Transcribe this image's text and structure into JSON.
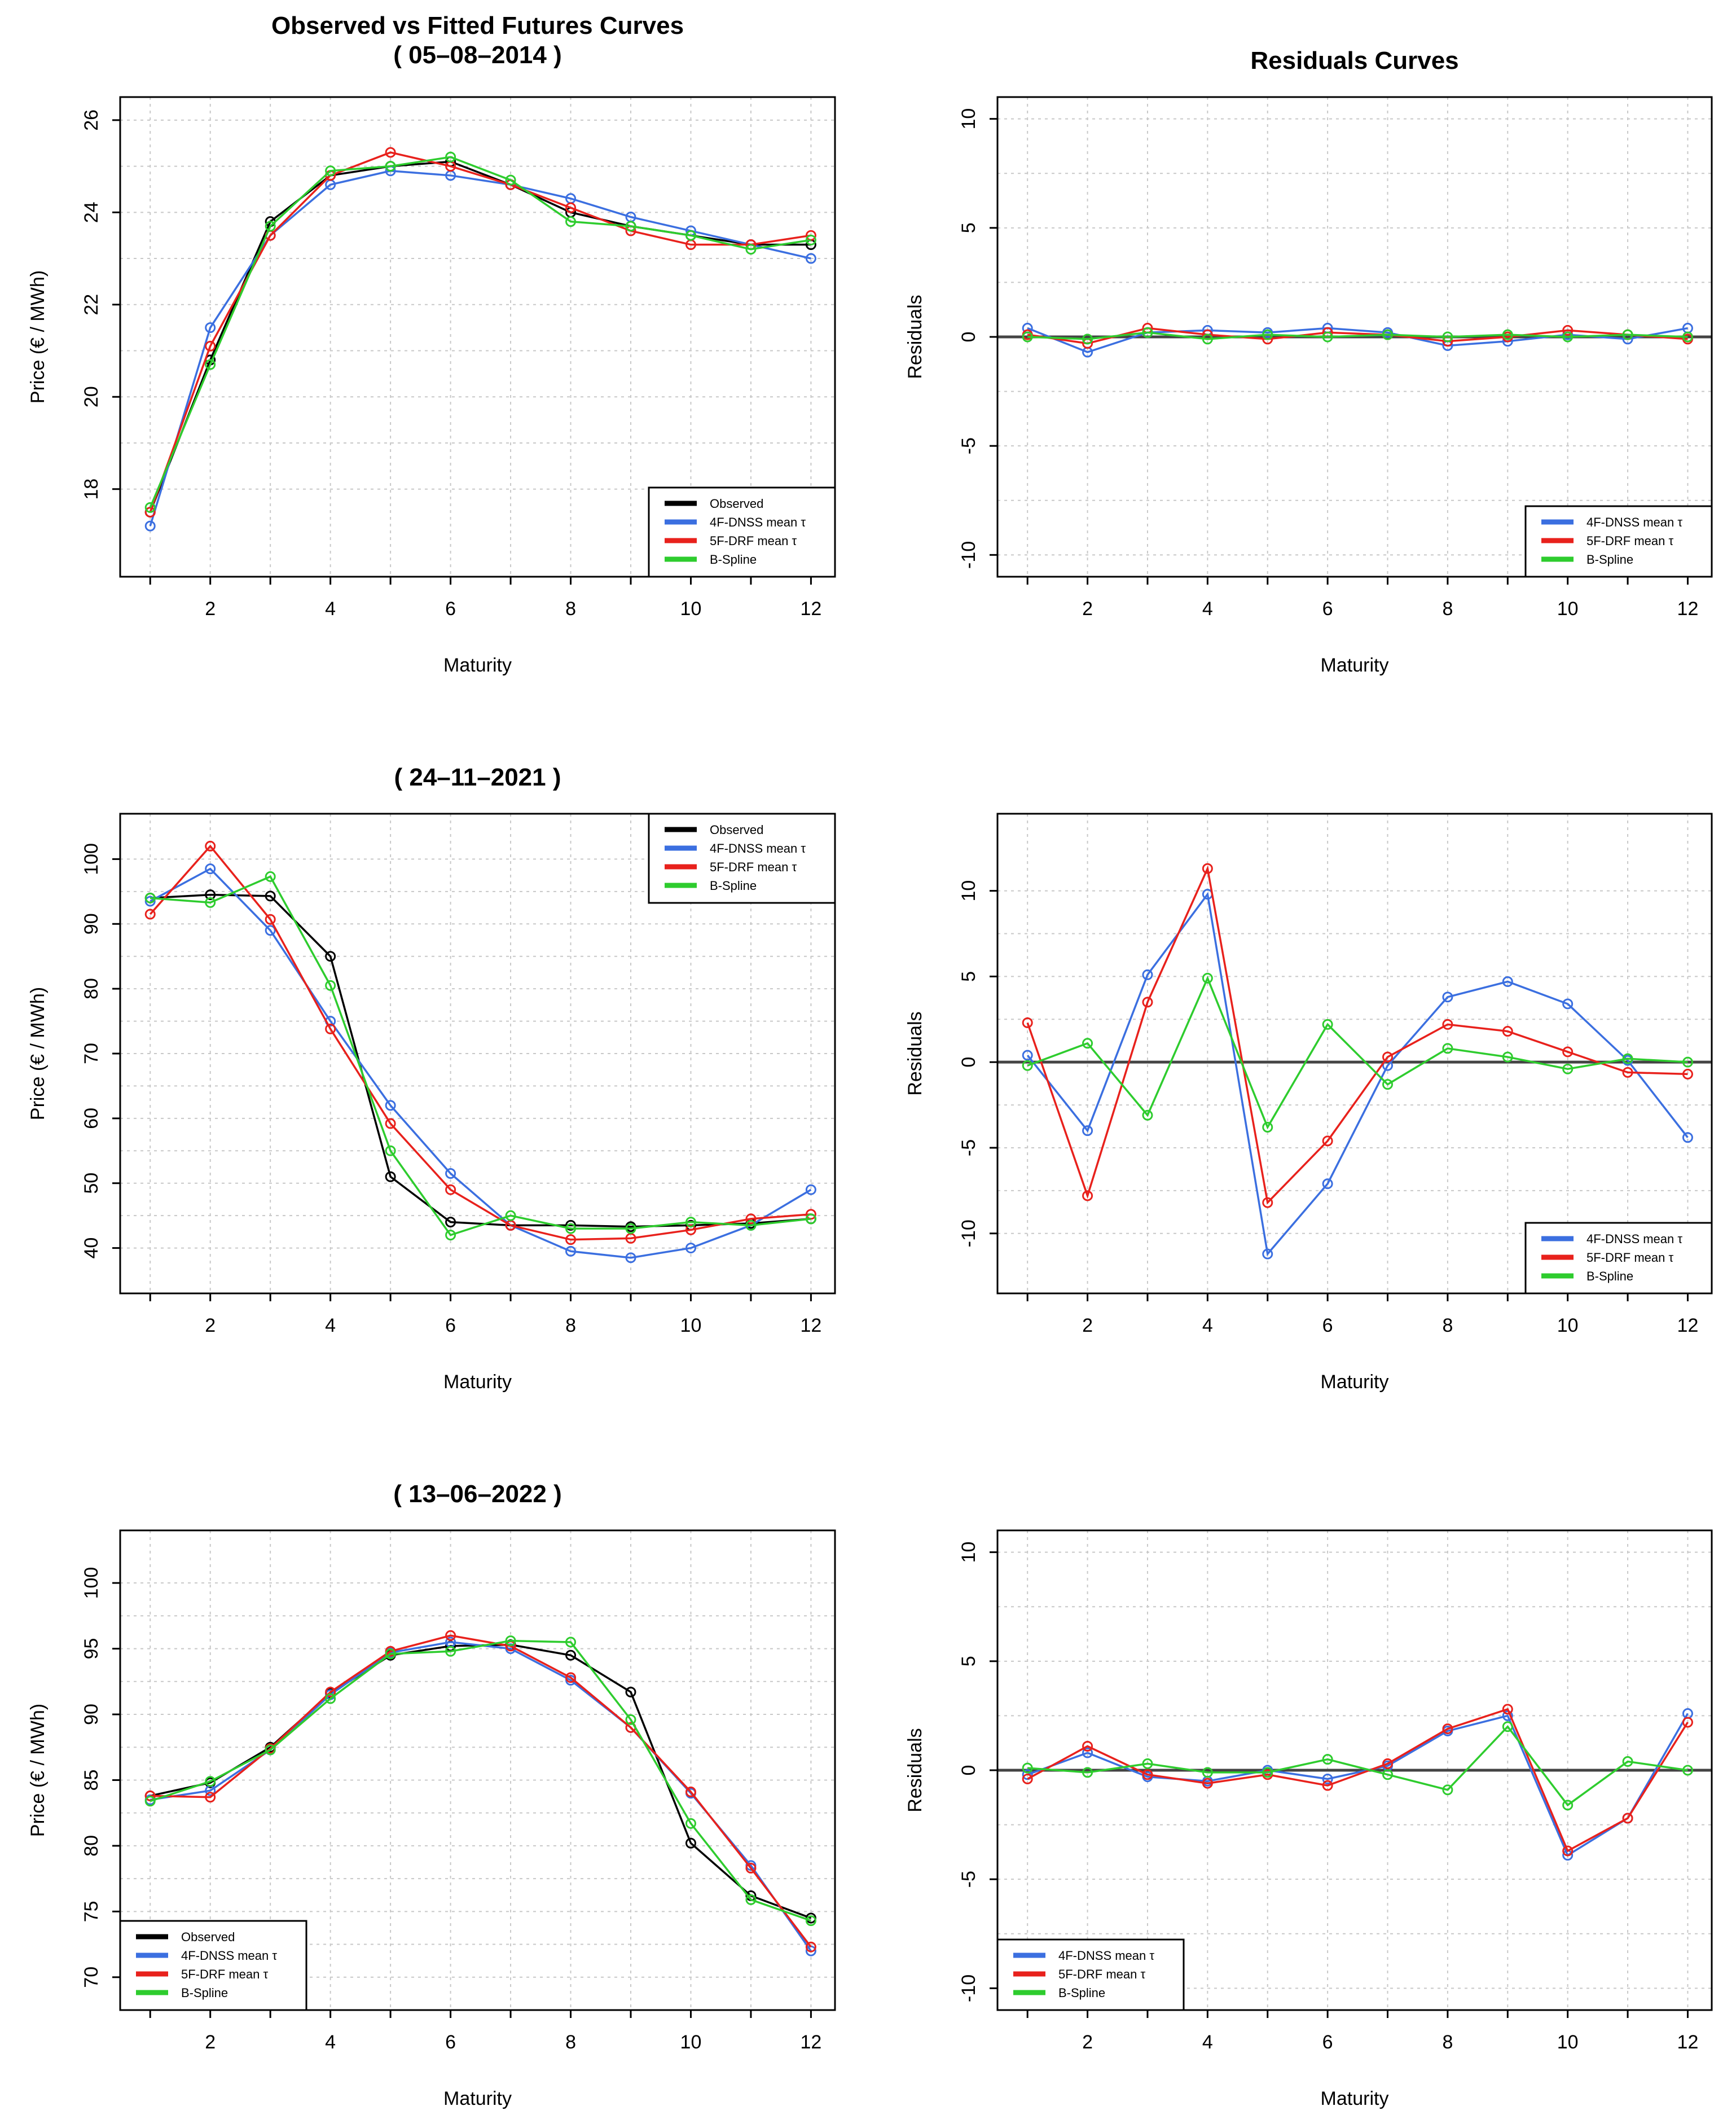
{
  "figure": {
    "colors": {
      "Observed": "#000000",
      "4F-DNSS mean τ": "#3b6fe0",
      "5F-DRF mean τ": "#e8211c",
      "B-Spline": "#2ecc2e"
    },
    "zero_line_color": "#444444",
    "grid": true
  },
  "chart_data": [
    {
      "id": "p1",
      "type": "line",
      "title": "Observed vs Fitted Futures Curves\n( 05–08–2014 )",
      "xlabel": "Maturity",
      "ylabel": "Price (€ / MWh)",
      "xlim": [
        0.5,
        12.4
      ],
      "ylim": [
        16.1,
        26.5
      ],
      "xticks": [
        2,
        4,
        6,
        8,
        10,
        12
      ],
      "yticks": [
        18,
        20,
        22,
        24,
        26
      ],
      "legend_pos": "bottom-right",
      "x": [
        1,
        2,
        3,
        4,
        5,
        6,
        7,
        8,
        9,
        10,
        11,
        12
      ],
      "series": [
        {
          "name": "Observed",
          "values": [
            17.5,
            20.8,
            23.8,
            24.8,
            25.0,
            25.1,
            24.6,
            24.0,
            23.7,
            23.5,
            23.3,
            23.3
          ]
        },
        {
          "name": "4F-DNSS mean τ",
          "values": [
            17.2,
            21.5,
            23.5,
            24.6,
            24.9,
            24.8,
            24.6,
            24.3,
            23.9,
            23.6,
            23.3,
            23.0
          ]
        },
        {
          "name": "5F-DRF mean τ",
          "values": [
            17.5,
            21.1,
            23.5,
            24.8,
            25.3,
            25.0,
            24.6,
            24.1,
            23.6,
            23.3,
            23.3,
            23.5
          ]
        },
        {
          "name": "B-Spline",
          "values": [
            17.6,
            20.7,
            23.7,
            24.9,
            25.0,
            25.2,
            24.7,
            23.8,
            23.7,
            23.5,
            23.2,
            23.4
          ]
        }
      ]
    },
    {
      "id": "p2",
      "type": "line",
      "title": "Residuals Curves",
      "xlabel": "Maturity",
      "ylabel": "Residuals",
      "xlim": [
        0.5,
        12.4
      ],
      "ylim": [
        -11,
        11
      ],
      "xticks": [
        2,
        4,
        6,
        8,
        10,
        12
      ],
      "yticks": [
        -10,
        -5,
        0,
        5,
        10
      ],
      "zero_line": true,
      "legend_pos": "bottom-right",
      "x": [
        1,
        2,
        3,
        4,
        5,
        6,
        7,
        8,
        9,
        10,
        11,
        12
      ],
      "series": [
        {
          "name": "4F-DNSS mean τ",
          "values": [
            0.4,
            -0.7,
            0.2,
            0.3,
            0.2,
            0.4,
            0.2,
            -0.4,
            -0.2,
            0.1,
            -0.1,
            0.4
          ]
        },
        {
          "name": "5F-DRF mean τ",
          "values": [
            0.1,
            -0.3,
            0.4,
            0.1,
            -0.1,
            0.2,
            0.1,
            -0.2,
            0.0,
            0.3,
            0.1,
            -0.1
          ]
        },
        {
          "name": "B-Spline",
          "values": [
            0.0,
            -0.1,
            0.2,
            -0.1,
            0.1,
            0.0,
            0.1,
            0.0,
            0.1,
            0.0,
            0.1,
            0.0
          ]
        }
      ]
    },
    {
      "id": "p3",
      "type": "line",
      "title": "( 24–11–2021 )",
      "xlabel": "Maturity",
      "ylabel": "Price (€ / MWh)",
      "xlim": [
        0.5,
        12.4
      ],
      "ylim": [
        33,
        107
      ],
      "xticks": [
        2,
        4,
        6,
        8,
        10,
        12
      ],
      "yticks": [
        40,
        50,
        60,
        70,
        80,
        90,
        100
      ],
      "legend_pos": "top-right",
      "legend_entries": [
        "Observed",
        "4F-DNSS mean τ",
        "5F-DRF mean τ",
        "B-Spline"
      ],
      "x": [
        1,
        2,
        3,
        4,
        5,
        6,
        7,
        8,
        9,
        10,
        11,
        12
      ],
      "series": [
        {
          "name": "Observed",
          "values": [
            94.0,
            94.5,
            94.3,
            85.0,
            51.0,
            44.0,
            43.5,
            43.5,
            43.3,
            43.5,
            43.8,
            44.5
          ]
        },
        {
          "name": "4F-DNSS mean τ",
          "values": [
            93.5,
            98.5,
            89.0,
            75.0,
            62.0,
            51.5,
            43.5,
            39.5,
            38.5,
            40.0,
            43.5,
            49.0
          ]
        },
        {
          "name": "5F-DRF mean τ",
          "values": [
            91.5,
            102.0,
            90.7,
            73.8,
            59.2,
            49.0,
            43.5,
            41.3,
            41.5,
            42.8,
            44.5,
            45.2
          ]
        },
        {
          "name": "B-Spline",
          "values": [
            94.0,
            93.3,
            97.3,
            80.5,
            55.0,
            42.0,
            45.0,
            43.0,
            43.0,
            44.0,
            43.5,
            44.5
          ]
        }
      ]
    },
    {
      "id": "p4",
      "type": "line",
      "title": "",
      "xlabel": "Maturity",
      "ylabel": "Residuals",
      "xlim": [
        0.5,
        12.4
      ],
      "ylim": [
        -13.5,
        14.5
      ],
      "xticks": [
        2,
        4,
        6,
        8,
        10,
        12
      ],
      "yticks": [
        -10,
        -5,
        0,
        5,
        10
      ],
      "zero_line": true,
      "legend_pos": "bottom-right",
      "x": [
        1,
        2,
        3,
        4,
        5,
        6,
        7,
        8,
        9,
        10,
        11,
        12
      ],
      "series": [
        {
          "name": "4F-DNSS mean τ",
          "values": [
            0.4,
            -4.0,
            5.1,
            9.8,
            -11.2,
            -7.1,
            -0.2,
            3.8,
            4.7,
            3.4,
            0.1,
            -4.4
          ]
        },
        {
          "name": "5F-DRF mean τ",
          "values": [
            2.3,
            -7.8,
            3.5,
            11.3,
            -8.2,
            -4.6,
            0.3,
            2.2,
            1.8,
            0.6,
            -0.6,
            -0.7
          ]
        },
        {
          "name": "B-Spline",
          "values": [
            -0.2,
            1.1,
            -3.1,
            4.9,
            -3.8,
            2.2,
            -1.3,
            0.8,
            0.3,
            -0.4,
            0.2,
            0.0
          ]
        }
      ]
    },
    {
      "id": "p5",
      "type": "line",
      "title": "( 13–06–2022 )",
      "xlabel": "Maturity",
      "ylabel": "Price (€ / MWh)",
      "xlim": [
        0.5,
        12.4
      ],
      "ylim": [
        67.5,
        104
      ],
      "xticks": [
        2,
        4,
        6,
        8,
        10,
        12
      ],
      "yticks": [
        70,
        75,
        80,
        85,
        90,
        95,
        100
      ],
      "legend_pos": "bottom-left",
      "legend_entries": [
        "Observed",
        "4F-DNSS mean τ",
        "5F-DRF mean τ",
        "B-Spline"
      ],
      "x": [
        1,
        2,
        3,
        4,
        5,
        6,
        7,
        8,
        9,
        10,
        11,
        12
      ],
      "series": [
        {
          "name": "Observed",
          "values": [
            83.8,
            84.8,
            87.5,
            91.6,
            94.5,
            95.2,
            95.3,
            94.5,
            91.7,
            80.2,
            76.2,
            74.5
          ]
        },
        {
          "name": "4F-DNSS mean τ",
          "values": [
            83.5,
            84.2,
            87.3,
            91.5,
            94.7,
            95.5,
            95.0,
            92.6,
            89.0,
            84.0,
            78.5,
            72.0
          ]
        },
        {
          "name": "5F-DRF mean τ",
          "values": [
            83.8,
            83.7,
            87.4,
            91.7,
            94.8,
            96.0,
            95.2,
            92.8,
            89.0,
            84.1,
            78.3,
            72.3
          ]
        },
        {
          "name": "B-Spline",
          "values": [
            83.4,
            84.9,
            87.3,
            91.2,
            94.6,
            94.8,
            95.6,
            95.5,
            89.6,
            81.7,
            75.9,
            74.3
          ]
        }
      ]
    },
    {
      "id": "p6",
      "type": "line",
      "title": "",
      "xlabel": "Maturity",
      "ylabel": "Residuals",
      "xlim": [
        0.5,
        12.4
      ],
      "ylim": [
        -11,
        11
      ],
      "xticks": [
        2,
        4,
        6,
        8,
        10,
        12
      ],
      "yticks": [
        -10,
        -5,
        0,
        5,
        10
      ],
      "zero_line": true,
      "legend_pos": "bottom-left",
      "x": [
        1,
        2,
        3,
        4,
        5,
        6,
        7,
        8,
        9,
        10,
        11,
        12
      ],
      "series": [
        {
          "name": "4F-DNSS mean τ",
          "values": [
            -0.2,
            0.8,
            -0.3,
            -0.5,
            0.0,
            -0.4,
            0.2,
            1.8,
            2.5,
            -3.9,
            -2.2,
            2.6
          ]
        },
        {
          "name": "5F-DRF mean τ",
          "values": [
            -0.4,
            1.1,
            -0.2,
            -0.6,
            -0.2,
            -0.7,
            0.3,
            1.9,
            2.8,
            -3.7,
            -2.2,
            2.2
          ]
        },
        {
          "name": "B-Spline",
          "values": [
            0.1,
            -0.1,
            0.3,
            -0.1,
            -0.1,
            0.5,
            -0.2,
            -0.9,
            2.0,
            -1.6,
            0.4,
            0.0
          ]
        }
      ]
    }
  ]
}
